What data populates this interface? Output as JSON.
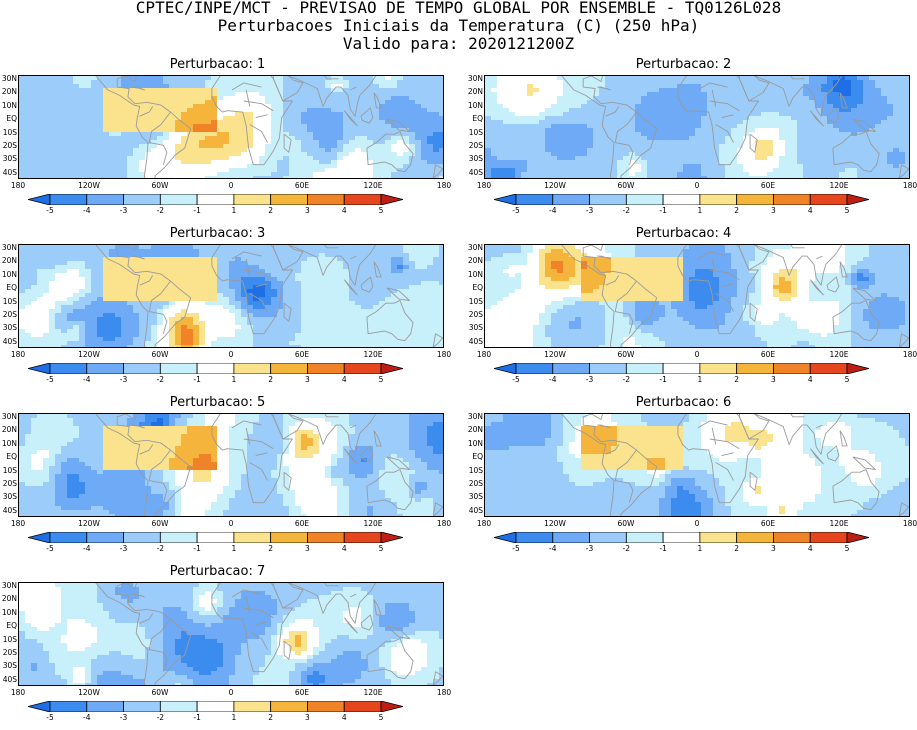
{
  "header": {
    "line1": "CPTEC/INPE/MCT - PREVISAO DE TEMPO GLOBAL POR ENSEMBLE - TQ0126L028",
    "line2": "Perturbacoes Iniciais da Temperatura (C) (250 hPa)",
    "line3": "Valido para: 2020121200Z"
  },
  "map": {
    "lat_labels": [
      "30N",
      "20N",
      "10N",
      "EQ",
      "10S",
      "20S",
      "30S",
      "40S"
    ],
    "lon_labels": [
      "180",
      "120W",
      "60W",
      "0",
      "60E",
      "120E",
      "180"
    ],
    "lon_range": [
      -180,
      180
    ],
    "lat_range": [
      -45,
      30
    ]
  },
  "colorbar": {
    "labels": [
      "-5",
      "-4",
      "-3",
      "-2",
      "-1",
      "1",
      "2",
      "3",
      "4",
      "5"
    ],
    "colors": [
      "#1e6ee6",
      "#3c8cf0",
      "#6eaaf5",
      "#9cccfa",
      "#c8f0fa",
      "#ffffff",
      "#fae38c",
      "#f5b43c",
      "#f08228",
      "#e6461e",
      "#be1e14"
    ]
  },
  "panels": [
    {
      "title": "Perturbacao: 1",
      "seed": 11,
      "box": [
        -108,
        -10,
        -12,
        20
      ],
      "box_level": 1.6
    },
    {
      "title": "Perturbacao: 2",
      "seed": 23,
      "box": null,
      "box_level": 0
    },
    {
      "title": "Perturbacao: 3",
      "seed": 37,
      "box": [
        -108,
        -10,
        -12,
        20
      ],
      "box_level": 1.3
    },
    {
      "title": "Perturbacao: 4",
      "seed": 41,
      "box": [
        -100,
        -10,
        -12,
        20
      ],
      "box_level": 1.5
    },
    {
      "title": "Perturbacao: 5",
      "seed": 53,
      "box": [
        -108,
        -10,
        -12,
        20
      ],
      "box_level": 1.8
    },
    {
      "title": "Perturbacao: 6",
      "seed": 67,
      "box": [
        -100,
        -10,
        -12,
        20
      ],
      "box_level": 1.4
    },
    {
      "title": "Perturbacao: 7",
      "seed": 79,
      "box": null,
      "box_level": 0
    }
  ]
}
